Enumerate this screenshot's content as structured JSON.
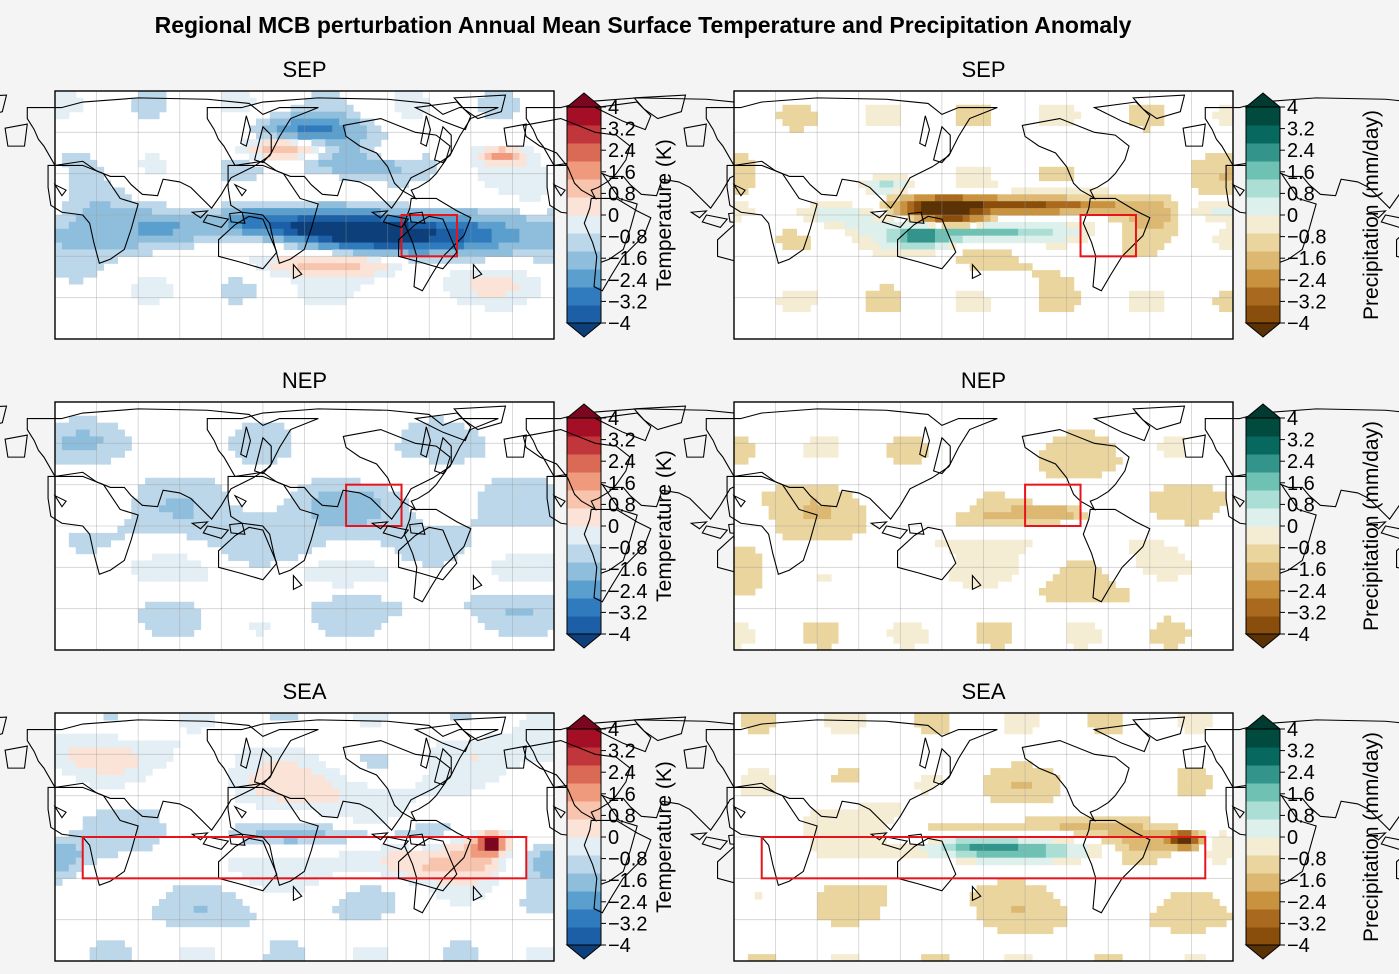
{
  "figure": {
    "title": "Regional MCB perturbation Annual Mean Surface Temperature and Precipitation Anomaly"
  },
  "colors": {
    "box": "#e8141c",
    "coast": "#000000",
    "RdBu_r": [
      "#1d5fa6",
      "#2f7bbd",
      "#5b9fce",
      "#8fbedd",
      "#bcd7e9",
      "#e3eef5",
      "#fbe3d7",
      "#f8c4ae",
      "#ef9a7d",
      "#da6a55",
      "#c1363b",
      "#a50f26"
    ],
    "RdBu_r_ext": [
      "#0d3f7a",
      "#7a0620"
    ],
    "BrBG": [
      "#8a4e0c",
      "#a9691e",
      "#c9923f",
      "#dcb872",
      "#ead59f",
      "#f5ecd4",
      "#ddf0ec",
      "#abdfd6",
      "#6fc1b3",
      "#32948a",
      "#07685f",
      "#004a3e"
    ],
    "BrBG_ext": [
      "#5b3206",
      "#003a30"
    ]
  },
  "colorbars": {
    "temperature": {
      "label": "Temperature (K)",
      "extend": "both",
      "ticks": [
        "4",
        "3.2",
        "2.4",
        "1.6",
        "0.8",
        "0",
        "−0.8",
        "−1.6",
        "−2.4",
        "−3.2",
        "−4"
      ]
    },
    "precipitation": {
      "label": "Precipitation (mm/day)",
      "extend": "both",
      "ticks": [
        "4",
        "3.2",
        "2.4",
        "1.6",
        "0.8",
        "0",
        "−0.8",
        "−1.6",
        "−2.4",
        "−3.2",
        "−4"
      ]
    }
  },
  "chart_data": [
    {
      "type": "heatmap",
      "title": "SEP",
      "variable": "temperature",
      "colormap": "RdBu_r",
      "range": [
        -4,
        4
      ],
      "levels_step": 0.8,
      "region_box": {
        "lon": [
          -110,
          -70
        ],
        "lat": [
          -30,
          0
        ]
      },
      "projection": "PlateCarree, central longitude 180",
      "grid": true,
      "features": [
        {
          "lon": -115,
          "lat": -15,
          "sx": 55,
          "sy": 10,
          "value": -4.5
        },
        {
          "lon": -165,
          "lat": -8,
          "sx": 45,
          "sy": 8,
          "value": -2.6
        },
        {
          "lon": 140,
          "lat": -2,
          "sx": 18,
          "sy": 7,
          "value": -1.6
        },
        {
          "lon": 165,
          "lat": 48,
          "sx": 20,
          "sy": 5,
          "value": 2.8
        },
        {
          "lon": -150,
          "lat": 40,
          "sx": 28,
          "sy": 9,
          "value": -1.8
        },
        {
          "lon": -175,
          "lat": 62,
          "sx": 25,
          "sy": 7,
          "value": -2.6
        },
        {
          "lon": -38,
          "lat": 43,
          "sx": 10,
          "sy": 4,
          "value": 2.4
        },
        {
          "lon": -120,
          "lat": 45,
          "sx": 15,
          "sy": 5,
          "value": 1.2
        },
        {
          "lon": -160,
          "lat": -35,
          "sx": 35,
          "sy": 6,
          "value": 2.2
        },
        {
          "lon": 175,
          "lat": -20,
          "sx": 30,
          "sy": 5,
          "value": 1.3
        },
        {
          "lon": 20,
          "lat": -5,
          "sx": 25,
          "sy": 25,
          "value": -1.2
        },
        {
          "lon": 80,
          "lat": -10,
          "sx": 25,
          "sy": 8,
          "value": -1.2
        },
        {
          "lon": -10,
          "lat": 20,
          "sx": 20,
          "sy": 15,
          "value": 0.9
        },
        {
          "lon": -60,
          "lat": -50,
          "sx": 60,
          "sy": 10,
          "value": 0.6
        }
      ]
    },
    {
      "type": "heatmap",
      "title": "SEP",
      "variable": "precipitation",
      "colormap": "BrBG",
      "range": [
        -4,
        4
      ],
      "levels_step": 0.8,
      "region_box": {
        "lon": [
          -110,
          -70
        ],
        "lat": [
          -30,
          0
        ]
      },
      "projection": "PlateCarree, central longitude 180",
      "grid": true,
      "features": [
        {
          "lon": -150,
          "lat": 8,
          "sx": 50,
          "sy": 5,
          "value": -3.6
        },
        {
          "lon": 150,
          "lat": 5,
          "sx": 18,
          "sy": 5,
          "value": -5
        },
        {
          "lon": 175,
          "lat": -12,
          "sx": 40,
          "sy": 5,
          "value": 3.2
        },
        {
          "lon": 135,
          "lat": -18,
          "sx": 15,
          "sy": 6,
          "value": 2.6
        },
        {
          "lon": 110,
          "lat": 22,
          "sx": 12,
          "sy": 5,
          "value": 2.2
        },
        {
          "lon": 160,
          "lat": -5,
          "sx": 15,
          "sy": 4,
          "value": -2.8
        },
        {
          "lon": -130,
          "lat": 15,
          "sx": 30,
          "sy": 4,
          "value": 1.8
        },
        {
          "lon": 75,
          "lat": 0,
          "sx": 20,
          "sy": 6,
          "value": 1.4
        },
        {
          "lon": -60,
          "lat": 0,
          "sx": 15,
          "sy": 8,
          "value": -1.0
        },
        {
          "lon": -10,
          "lat": 5,
          "sx": 20,
          "sy": 5,
          "value": 1.0
        },
        {
          "lon": 0,
          "lat": 30,
          "sx": 40,
          "sy": 15,
          "value": -0.4
        },
        {
          "lon": -150,
          "lat": -35,
          "sx": 50,
          "sy": 10,
          "value": -0.4
        }
      ]
    },
    {
      "type": "heatmap",
      "title": "NEP",
      "variable": "temperature",
      "colormap": "RdBu_r",
      "range": [
        -4,
        4
      ],
      "levels_step": 0.8,
      "region_box": {
        "lon": [
          -150,
          -110
        ],
        "lat": [
          0,
          30
        ]
      },
      "projection": "PlateCarree, central longitude 180",
      "grid": true,
      "features": [
        {
          "lon": -140,
          "lat": 15,
          "sx": 80,
          "sy": 30,
          "value": -0.6
        },
        {
          "lon": 100,
          "lat": 0,
          "sx": 80,
          "sy": 20,
          "value": -0.4
        },
        {
          "lon": -160,
          "lat": -35,
          "sx": 70,
          "sy": 8,
          "value": 0.6
        },
        {
          "lon": -130,
          "lat": 38,
          "sx": 40,
          "sy": 8,
          "value": 0.55
        },
        {
          "lon": 30,
          "lat": -30,
          "sx": 50,
          "sy": 10,
          "value": 0.5
        },
        {
          "lon": 0,
          "lat": 60,
          "sx": 60,
          "sy": 10,
          "value": -0.5
        },
        {
          "lon": -60,
          "lat": -60,
          "sx": 100,
          "sy": 10,
          "value": -0.5
        }
      ]
    },
    {
      "type": "heatmap",
      "title": "NEP",
      "variable": "precipitation",
      "colormap": "BrBG",
      "range": [
        -4,
        4
      ],
      "levels_step": 0.8,
      "region_box": {
        "lon": [
          -150,
          -110
        ],
        "lat": [
          0,
          30
        ]
      },
      "projection": "PlateCarree, central longitude 180",
      "grid": true,
      "features": [
        {
          "lon": -130,
          "lat": 10,
          "sx": 18,
          "sy": 4,
          "value": -1.6
        },
        {
          "lon": -150,
          "lat": 5,
          "sx": 45,
          "sy": 4,
          "value": -0.5
        },
        {
          "lon": 175,
          "lat": -12,
          "sx": 40,
          "sy": 6,
          "value": 0.6
        },
        {
          "lon": 150,
          "lat": -35,
          "sx": 30,
          "sy": 10,
          "value": 0.5
        },
        {
          "lon": 60,
          "lat": 0,
          "sx": 60,
          "sy": 20,
          "value": -0.4
        },
        {
          "lon": -120,
          "lat": 45,
          "sx": 40,
          "sy": 12,
          "value": -0.4
        },
        {
          "lon": -60,
          "lat": -10,
          "sx": 20,
          "sy": 15,
          "value": 0.45
        },
        {
          "lon": 0,
          "lat": 20,
          "sx": 40,
          "sy": 10,
          "value": -0.4
        },
        {
          "lon": -100,
          "lat": -50,
          "sx": 80,
          "sy": 8,
          "value": -0.4
        }
      ]
    },
    {
      "type": "heatmap",
      "title": "SEA",
      "variable": "temperature",
      "colormap": "RdBu_r",
      "range": [
        -4,
        4
      ],
      "levels_step": 0.8,
      "region_box": {
        "lon": [
          -20,
          20
        ],
        "lat": [
          -30,
          0
        ]
      },
      "projection": "PlateCarree, central longitude 180",
      "grid": true,
      "features": [
        {
          "lon": -45,
          "lat": -5,
          "sx": 7,
          "sy": 5,
          "value": 5
        },
        {
          "lon": -60,
          "lat": -12,
          "sx": 15,
          "sy": 12,
          "value": 2.0
        },
        {
          "lon": -95,
          "lat": -20,
          "sx": 25,
          "sy": 8,
          "value": 1.5
        },
        {
          "lon": 0,
          "lat": -15,
          "sx": 15,
          "sy": 10,
          "value": -1.4
        },
        {
          "lon": -150,
          "lat": 2,
          "sx": 60,
          "sy": 6,
          "value": -0.9
        },
        {
          "lon": 160,
          "lat": -20,
          "sx": 40,
          "sy": 10,
          "value": 0.7
        },
        {
          "lon": -175,
          "lat": 35,
          "sx": 55,
          "sy": 15,
          "value": 1.0
        },
        {
          "lon": 0,
          "lat": 60,
          "sx": 90,
          "sy": 12,
          "value": 0.8
        },
        {
          "lon": 90,
          "lat": 10,
          "sx": 40,
          "sy": 20,
          "value": -0.5
        },
        {
          "lon": 120,
          "lat": -55,
          "sx": 80,
          "sy": 10,
          "value": -0.5
        },
        {
          "lon": -120,
          "lat": 55,
          "sx": 40,
          "sy": 10,
          "value": -0.6
        }
      ]
    },
    {
      "type": "heatmap",
      "title": "SEA",
      "variable": "precipitation",
      "colormap": "BrBG",
      "range": [
        -4,
        4
      ],
      "levels_step": 0.8,
      "region_box": {
        "lon": [
          -20,
          20
        ],
        "lat": [
          -30,
          0
        ]
      },
      "projection": "PlateCarree, central longitude 180",
      "grid": true,
      "features": [
        {
          "lon": -160,
          "lat": -10,
          "sx": 45,
          "sy": 5,
          "value": 2.8
        },
        {
          "lon": 170,
          "lat": -5,
          "sx": 20,
          "sy": 4,
          "value": 1.6
        },
        {
          "lon": -35,
          "lat": -2,
          "sx": 8,
          "sy": 4,
          "value": -5
        },
        {
          "lon": -60,
          "lat": -5,
          "sx": 18,
          "sy": 10,
          "value": -1.2
        },
        {
          "lon": -140,
          "lat": 8,
          "sx": 45,
          "sy": 4,
          "value": -0.9
        },
        {
          "lon": 90,
          "lat": 15,
          "sx": 30,
          "sy": 12,
          "value": 0.6
        },
        {
          "lon": -150,
          "lat": 35,
          "sx": 40,
          "sy": 10,
          "value": -0.4
        },
        {
          "lon": 20,
          "lat": -10,
          "sx": 25,
          "sy": 15,
          "value": 0.45
        },
        {
          "lon": 150,
          "lat": -40,
          "sx": 60,
          "sy": 10,
          "value": -0.4
        },
        {
          "lon": -100,
          "lat": -60,
          "sx": 100,
          "sy": 10,
          "value": -0.4
        }
      ]
    }
  ]
}
